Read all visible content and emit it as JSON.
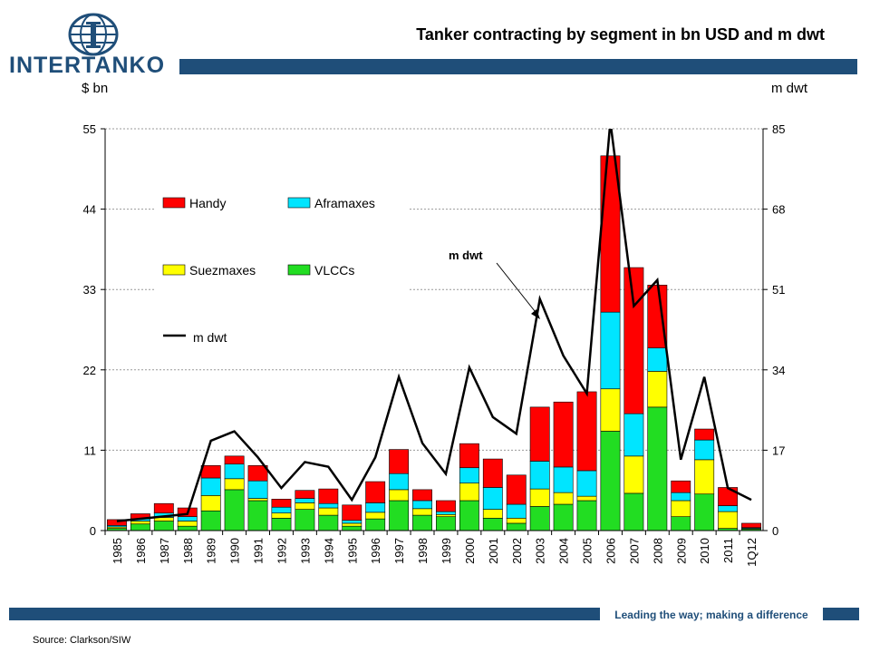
{
  "header": {
    "logo_text": "INTERTANKO",
    "title": "Tanker contracting by segment in bn USD and m dwt"
  },
  "footer": {
    "tagline": "Leading the way; making a difference",
    "source": "Source: Clarkson/SIW"
  },
  "colors": {
    "brand": "#1f4e79",
    "handy": "#ff0000",
    "aframaxes": "#00e5ff",
    "suezmaxes": "#ffff00",
    "vlccs": "#22dd22",
    "mdwt_line": "#000000"
  },
  "chart_data": {
    "type": "bar",
    "stacked": true,
    "title": "Tanker contracting by segment in bn USD and m dwt",
    "ylabel_left": "$ bn",
    "ylabel_right": "m dwt",
    "ylim_left": [
      0,
      55
    ],
    "ylim_right": [
      0,
      85
    ],
    "yticks_left": [
      "0",
      "11",
      "22",
      "33",
      "44",
      "55"
    ],
    "yticks_right": [
      "0",
      "17",
      "34",
      "51",
      "68",
      "85"
    ],
    "grid": true,
    "legend_placement": "top-left",
    "annotation": "m dwt",
    "categories": [
      "1985",
      "1986",
      "1987",
      "1988",
      "1989",
      "1990",
      "1991",
      "1992",
      "1993",
      "1994",
      "1995",
      "1996",
      "1997",
      "1998",
      "1999",
      "2000",
      "2001",
      "2002",
      "2003",
      "2004",
      "2005",
      "2006",
      "2007",
      "2008",
      "2009",
      "2010",
      "2011",
      "1Q12"
    ],
    "series": [
      {
        "name": "VLCCs",
        "values": [
          0.3,
          0.9,
          1.3,
          0.6,
          2.7,
          5.6,
          4.1,
          1.7,
          2.9,
          2.1,
          0.6,
          1.6,
          4.1,
          2.1,
          1.9,
          4.1,
          1.7,
          1.0,
          3.3,
          3.6,
          4.1,
          13.6,
          5.1,
          16.9,
          1.9,
          5.0,
          0.3,
          0.2
        ]
      },
      {
        "name": "Suezmaxes",
        "values": [
          0.2,
          0.4,
          0.5,
          0.7,
          2.1,
          1.5,
          0.3,
          0.7,
          0.9,
          1.0,
          0.4,
          0.9,
          1.5,
          0.9,
          0.3,
          2.4,
          1.2,
          0.7,
          2.4,
          1.6,
          0.6,
          5.8,
          5.1,
          4.9,
          2.2,
          4.7,
          2.3,
          0.1
        ]
      },
      {
        "name": "Aframaxes",
        "values": [
          0.2,
          0.3,
          0.6,
          0.6,
          2.4,
          2.0,
          2.4,
          0.8,
          0.6,
          0.6,
          0.4,
          1.3,
          2.2,
          1.1,
          0.4,
          2.1,
          3.0,
          1.9,
          3.8,
          3.5,
          3.5,
          10.5,
          5.8,
          3.2,
          1.1,
          2.7,
          0.8,
          0.1
        ]
      },
      {
        "name": "Handy",
        "values": [
          0.8,
          0.7,
          1.3,
          1.2,
          1.7,
          1.1,
          2.1,
          1.1,
          1.1,
          2.0,
          2.1,
          2.9,
          3.3,
          1.5,
          1.5,
          3.3,
          3.9,
          4.0,
          7.4,
          8.9,
          10.8,
          21.4,
          20.0,
          8.6,
          1.6,
          1.5,
          2.5,
          0.6
        ]
      },
      {
        "name": "m dwt",
        "axis": "right",
        "values": [
          2.0,
          2.5,
          3.0,
          3.5,
          19.0,
          21.0,
          15.5,
          9.0,
          14.5,
          13.5,
          6.5,
          15.5,
          32.5,
          18.5,
          12.0,
          34.5,
          24.0,
          20.5,
          49.0,
          37.0,
          29.0,
          86.5,
          47.5,
          53.0,
          15.0,
          32.5,
          9.0,
          6.5
        ]
      }
    ]
  }
}
